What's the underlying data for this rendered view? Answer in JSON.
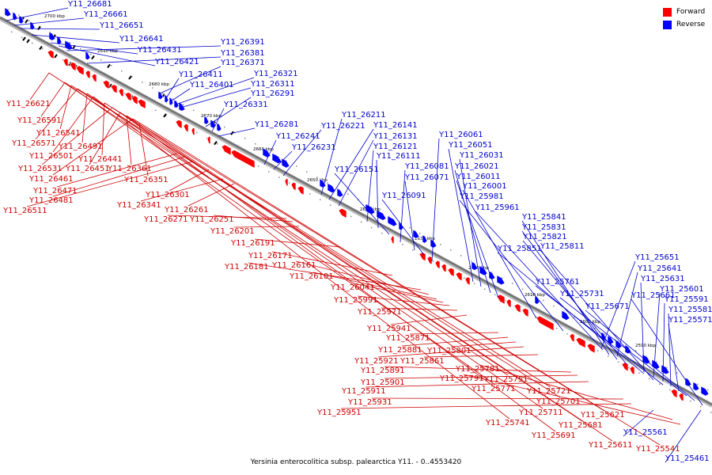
{
  "legend": {
    "forward_label": "Forward",
    "reverse_label": "Reverse",
    "forward_color": "#ff0000",
    "reverse_color": "#0000ff"
  },
  "caption": "Yersinia enterocolitica subsp. palearctica Y11. - 0..4553420",
  "colors": {
    "forward_fill": "#ff0000",
    "forward_label": "#cc0000",
    "reverse_fill": "#0000ff",
    "reverse_label": "#0000cc",
    "axis": "#777777"
  },
  "ticks": [
    "2700 kbp",
    "2690 kbp",
    "2680 kbp",
    "2670 kbp",
    "2660 kbp",
    "2650 kbp",
    "2640 kbp",
    "2630 kbp",
    "2620 kbp",
    "2610 kbp",
    "2600 kbp",
    "2590 kbp"
  ],
  "reverse_genes": [
    "Y11_26681",
    "Y11_26661",
    "Y11_26651",
    "Y11_26641",
    "Y11_26431",
    "Y11_26421",
    "Y11_26391",
    "Y11_26381",
    "Y11_26371",
    "Y11_26411",
    "Y11_26401",
    "Y11_26321",
    "Y11_26311",
    "Y11_26291",
    "Y11_26331",
    "Y11_26281",
    "Y11_26241",
    "Y11_26231",
    "Y11_26221",
    "Y11_26211",
    "Y11_26141",
    "Y11_26131",
    "Y11_26121",
    "Y11_26111",
    "Y11_26151",
    "Y11_26081",
    "Y11_26071",
    "Y11_26091",
    "Y11_26061",
    "Y11_26051",
    "Y11_26031",
    "Y11_26021",
    "Y11_26011",
    "Y11_26001",
    "Y11_25981",
    "Y11_25961",
    "Y11_25841",
    "Y11_25831",
    "Y11_25821",
    "Y11_25851",
    "Y11_25811",
    "Y11_25761",
    "Y11_25731",
    "Y11_25671",
    "Y11_25661",
    "Y11_25651",
    "Y11_25641",
    "Y11_25631",
    "Y11_25601",
    "Y11_25591",
    "Y11_25581",
    "Y11_25571",
    "Y11_25561",
    "Y11_25461"
  ],
  "forward_genes": [
    "Y11_26621",
    "Y11_26591",
    "Y11_26541",
    "Y11_26571",
    "Y11_26491",
    "Y11_26501",
    "Y11_26441",
    "Y11_26531",
    "Y11_26451",
    "Y11_26361",
    "Y11_26461",
    "Y11_26351",
    "Y11_26471",
    "Y11_26481",
    "Y11_26511",
    "Y11_26301",
    "Y11_26341",
    "Y11_26261",
    "Y11_26271",
    "Y11_26251",
    "Y11_26201",
    "Y11_26191",
    "Y11_26171",
    "Y11_26181",
    "Y11_26161",
    "Y11_26101",
    "Y11_26041",
    "Y11_25991",
    "Y11_25971",
    "Y11_25941",
    "Y11_25871",
    "Y11_25881",
    "Y11_25801",
    "Y11_25921",
    "Y11_25861",
    "Y11_25891",
    "Y11_25901",
    "Y11_25911",
    "Y11_25931",
    "Y11_25951",
    "Y11_25781",
    "Y11_25791",
    "Y11_25751",
    "Y11_25771",
    "Y11_25721",
    "Y11_25701",
    "Y11_25711",
    "Y11_25741",
    "Y11_25621",
    "Y11_25681",
    "Y11_25691",
    "Y11_25611",
    "Y11_25541"
  ]
}
